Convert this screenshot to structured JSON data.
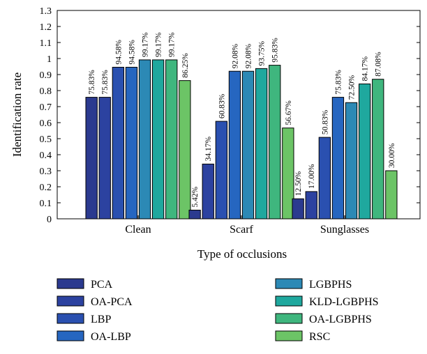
{
  "chart_data": {
    "type": "bar",
    "xlabel": "Type of occlusions",
    "ylabel": "Identification rate",
    "ylim": [
      0,
      1.3
    ],
    "yticks": [
      "0",
      "0.1",
      "0.2",
      "0.3",
      "0.4",
      "0.5",
      "0.6",
      "0.7",
      "0.8",
      "0.9",
      "1",
      "1.1",
      "1.2",
      "1.3"
    ],
    "categories": [
      "Clean",
      "Scarf",
      "Sunglasses"
    ],
    "legend_placement": "below",
    "series": [
      {
        "name": "PCA",
        "color": "#2b3a8f",
        "values": [
          0.7583,
          0.0542,
          0.125
        ],
        "labels": [
          "75.83%",
          "5.42%",
          "12.50%"
        ]
      },
      {
        "name": "OA-PCA",
        "color": "#2c42a0",
        "values": [
          0.7583,
          0.3417,
          0.17
        ],
        "labels": [
          "75.83%",
          "34.17%",
          "17.00%"
        ]
      },
      {
        "name": "LBP",
        "color": "#2a50b0",
        "values": [
          0.9458,
          0.6083,
          0.5083
        ],
        "labels": [
          "94.58%",
          "60.83%",
          "50.83%"
        ]
      },
      {
        "name": "OA-LBP",
        "color": "#2666c0",
        "values": [
          0.9458,
          0.9208,
          0.7583
        ],
        "labels": [
          "94.58%",
          "92.08%",
          "75.83%"
        ]
      },
      {
        "name": "LGBPHS",
        "color": "#2c89b5",
        "values": [
          0.9917,
          0.9208,
          0.725
        ],
        "labels": [
          "99.17%",
          "92.08%",
          "72.50%"
        ]
      },
      {
        "name": "KLD-LGBPHS",
        "color": "#1fa89e",
        "values": [
          0.9917,
          0.9375,
          0.8417
        ],
        "labels": [
          "99.17%",
          "93.75%",
          "84.17%"
        ]
      },
      {
        "name": "OA-LGBPHS",
        "color": "#3fb67e",
        "values": [
          0.9917,
          0.9583,
          0.8708
        ],
        "labels": [
          "99.17%",
          "95.83%",
          "87.08%"
        ]
      },
      {
        "name": "RSC",
        "color": "#6cc466",
        "values": [
          0.8625,
          0.5667,
          0.3
        ],
        "labels": [
          "86.25%",
          "56.67%",
          "30.00%"
        ]
      }
    ]
  }
}
